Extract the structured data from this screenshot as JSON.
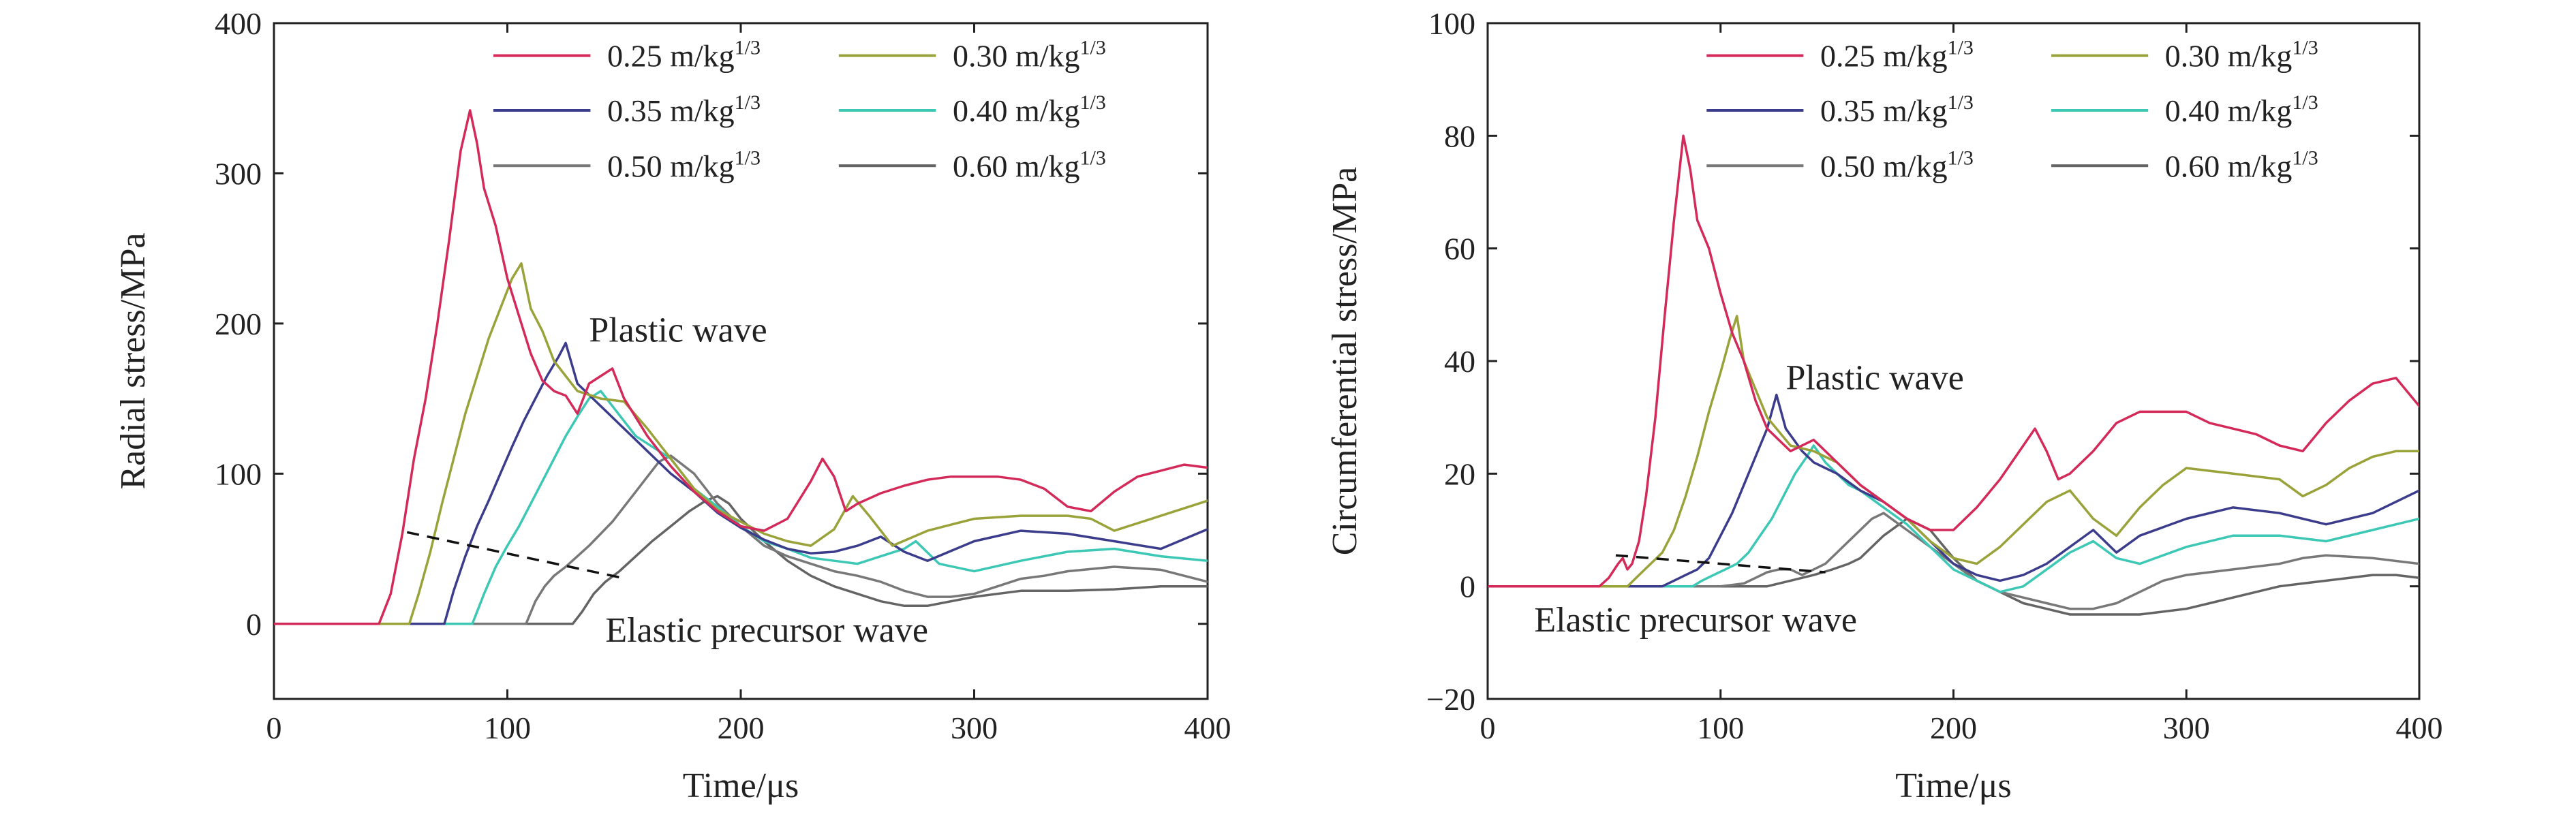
{
  "figure_colors": {
    "r025": "#d42a5a",
    "r030": "#9aa23a",
    "r035": "#3c3c8c",
    "r040": "#3cc8b4",
    "r050": "#787878",
    "r060": "#646464",
    "axis": "#222222",
    "dashed": "#111111"
  },
  "chart_data": [
    {
      "type": "line",
      "xlabel": "Time/μs",
      "ylabel": "Radial stress/MPa",
      "xlim": [
        0,
        400
      ],
      "ylim": [
        -50,
        400
      ],
      "xticks": [
        0,
        100,
        200,
        300,
        400
      ],
      "yticks": [
        0,
        100,
        200,
        300,
        400
      ],
      "xtick_labels": [
        "0",
        "100",
        "200",
        "300",
        "400"
      ],
      "ytick_labels": [
        "0",
        "100",
        "200",
        "300",
        "400"
      ],
      "grid": false,
      "legend_position": "top-right",
      "annotations": [
        {
          "text": "Plastic wave",
          "x": 135,
          "y": 188
        },
        {
          "text": "Elastic precursor wave",
          "x": 142,
          "y": -12
        }
      ],
      "dashed_line": {
        "x": [
          57,
          148
        ],
        "y": [
          61,
          31
        ]
      },
      "series": [
        {
          "name": "0.25 m/kg",
          "name_sup": "1/3",
          "color_key": "r025",
          "x": [
            0,
            45,
            50,
            55,
            60,
            65,
            70,
            75,
            80,
            84,
            87,
            90,
            95,
            100,
            105,
            110,
            115,
            120,
            125,
            130,
            135,
            140,
            145,
            150,
            160,
            170,
            180,
            190,
            200,
            210,
            220,
            230,
            235,
            240,
            245,
            250,
            260,
            270,
            280,
            290,
            300,
            310,
            320,
            330,
            340,
            350,
            360,
            370,
            380,
            390,
            400
          ],
          "y": [
            0,
            0,
            20,
            60,
            110,
            150,
            200,
            255,
            315,
            342,
            320,
            290,
            265,
            230,
            205,
            180,
            162,
            155,
            152,
            140,
            160,
            165,
            170,
            150,
            125,
            105,
            88,
            75,
            65,
            62,
            70,
            95,
            110,
            98,
            75,
            80,
            87,
            92,
            96,
            98,
            98,
            98,
            96,
            90,
            78,
            75,
            88,
            98,
            102,
            106,
            104
          ]
        },
        {
          "name": "0.30 m/kg",
          "name_sup": "1/3",
          "color_key": "r030",
          "x": [
            0,
            58,
            62,
            67,
            72,
            77,
            82,
            87,
            92,
            97,
            102,
            106,
            110,
            115,
            120,
            130,
            140,
            150,
            160,
            170,
            180,
            190,
            200,
            210,
            220,
            230,
            240,
            248,
            255,
            265,
            280,
            300,
            320,
            340,
            350,
            360,
            380,
            400
          ],
          "y": [
            0,
            0,
            20,
            48,
            80,
            110,
            140,
            165,
            190,
            210,
            230,
            240,
            210,
            195,
            175,
            155,
            150,
            148,
            130,
            110,
            90,
            76,
            68,
            60,
            55,
            52,
            63,
            85,
            72,
            52,
            62,
            70,
            72,
            72,
            70,
            62,
            72,
            82
          ]
        },
        {
          "name": "0.35 m/kg",
          "name_sup": "1/3",
          "color_key": "r035",
          "x": [
            0,
            73,
            77,
            82,
            87,
            92,
            97,
            102,
            107,
            112,
            117,
            122,
            125,
            130,
            140,
            150,
            160,
            170,
            180,
            190,
            200,
            210,
            220,
            230,
            240,
            250,
            260,
            270,
            280,
            300,
            320,
            340,
            360,
            380,
            400
          ],
          "y": [
            0,
            0,
            22,
            45,
            65,
            82,
            100,
            118,
            135,
            150,
            165,
            178,
            187,
            160,
            145,
            130,
            115,
            100,
            88,
            74,
            64,
            56,
            50,
            47,
            48,
            52,
            58,
            48,
            42,
            55,
            62,
            60,
            55,
            50,
            63
          ]
        },
        {
          "name": "0.40 m/kg",
          "name_sup": "1/3",
          "color_key": "r040",
          "x": [
            0,
            85,
            90,
            95,
            100,
            105,
            110,
            115,
            120,
            125,
            130,
            135,
            140,
            145,
            150,
            155,
            160,
            170,
            180,
            190,
            200,
            210,
            220,
            230,
            240,
            250,
            260,
            270,
            275,
            285,
            300,
            320,
            340,
            360,
            380,
            400
          ],
          "y": [
            0,
            0,
            20,
            38,
            52,
            65,
            80,
            95,
            110,
            125,
            138,
            150,
            155,
            145,
            135,
            125,
            120,
            110,
            90,
            78,
            65,
            55,
            50,
            44,
            42,
            40,
            45,
            50,
            55,
            40,
            35,
            42,
            48,
            50,
            45,
            42
          ]
        },
        {
          "name": "0.50 m/kg",
          "name_sup": "1/3",
          "color_key": "r050",
          "x": [
            0,
            108,
            112,
            116,
            120,
            125,
            130,
            135,
            140,
            145,
            150,
            155,
            160,
            165,
            170,
            180,
            190,
            200,
            210,
            220,
            230,
            240,
            250,
            260,
            270,
            280,
            290,
            300,
            310,
            320,
            330,
            340,
            360,
            380,
            400
          ],
          "y": [
            0,
            0,
            15,
            25,
            32,
            38,
            45,
            52,
            60,
            68,
            78,
            88,
            98,
            108,
            112,
            100,
            80,
            65,
            52,
            45,
            40,
            35,
            32,
            28,
            22,
            18,
            18,
            20,
            25,
            30,
            32,
            35,
            38,
            36,
            28
          ]
        },
        {
          "name": "0.60 m/kg",
          "name_sup": "1/3",
          "color_key": "r060",
          "x": [
            0,
            128,
            132,
            137,
            142,
            148,
            155,
            162,
            170,
            178,
            185,
            190,
            195,
            200,
            210,
            220,
            230,
            240,
            250,
            260,
            270,
            280,
            290,
            300,
            310,
            320,
            330,
            340,
            360,
            380,
            400
          ],
          "y": [
            0,
            0,
            8,
            20,
            28,
            35,
            45,
            55,
            65,
            75,
            82,
            85,
            80,
            70,
            55,
            42,
            32,
            25,
            20,
            15,
            12,
            12,
            15,
            18,
            20,
            22,
            22,
            22,
            23,
            25,
            25
          ]
        }
      ]
    },
    {
      "type": "line",
      "xlabel": "Time/μs",
      "ylabel": "Circumferential stress/MPa",
      "xlim": [
        0,
        400
      ],
      "ylim": [
        -20,
        100
      ],
      "xticks": [
        0,
        100,
        200,
        300,
        400
      ],
      "yticks": [
        -20,
        0,
        20,
        40,
        60,
        80,
        100
      ],
      "xtick_labels": [
        "0",
        "100",
        "200",
        "300",
        "400"
      ],
      "ytick_labels": [
        "−20",
        "0",
        "20",
        "40",
        "60",
        "80",
        "100"
      ],
      "grid": false,
      "legend_position": "top-right",
      "annotations": [
        {
          "text": "Plastic  wave",
          "x": 128,
          "y": 35
        },
        {
          "text": "Elastic precursor wave",
          "x": 20,
          "y": -8
        }
      ],
      "dashed_line": {
        "x": [
          55,
          145
        ],
        "y": [
          5.5,
          2.5
        ]
      },
      "series": [
        {
          "name": "0.25 m/kg",
          "name_sup": "1/3",
          "color_key": "r025",
          "x": [
            0,
            48,
            52,
            56,
            58,
            60,
            62,
            65,
            68,
            72,
            76,
            80,
            84,
            87,
            90,
            95,
            100,
            105,
            110,
            115,
            120,
            130,
            140,
            150,
            160,
            170,
            180,
            190,
            200,
            210,
            220,
            230,
            235,
            240,
            245,
            250,
            260,
            270,
            280,
            290,
            300,
            310,
            320,
            330,
            340,
            350,
            360,
            370,
            380,
            390,
            400
          ],
          "y": [
            0,
            0,
            1.5,
            4,
            5,
            3,
            4,
            8,
            16,
            30,
            48,
            65,
            80,
            74,
            65,
            60,
            52,
            45,
            40,
            33,
            28,
            24,
            26,
            22,
            18,
            15,
            12,
            10,
            10,
            14,
            19,
            25,
            28,
            24,
            19,
            20,
            24,
            29,
            31,
            31,
            31,
            29,
            28,
            27,
            25,
            24,
            29,
            33,
            36,
            37,
            32
          ]
        },
        {
          "name": "0.30 m/kg",
          "name_sup": "1/3",
          "color_key": "r030",
          "x": [
            0,
            60,
            65,
            70,
            75,
            80,
            85,
            90,
            95,
            100,
            104,
            107,
            110,
            115,
            120,
            130,
            140,
            150,
            160,
            170,
            180,
            190,
            200,
            210,
            220,
            230,
            240,
            250,
            260,
            270,
            280,
            290,
            300,
            320,
            340,
            350,
            360,
            370,
            380,
            390,
            400
          ],
          "y": [
            0,
            0,
            2,
            4,
            6,
            10,
            16,
            23,
            31,
            38,
            44,
            48,
            40,
            35,
            30,
            25,
            24,
            22,
            18,
            15,
            12,
            8,
            5,
            4,
            7,
            11,
            15,
            17,
            12,
            9,
            14,
            18,
            21,
            20,
            19,
            16,
            18,
            21,
            23,
            24,
            24
          ]
        },
        {
          "name": "0.35 m/kg",
          "name_sup": "1/3",
          "color_key": "r035",
          "x": [
            0,
            75,
            80,
            85,
            90,
            95,
            100,
            105,
            110,
            115,
            120,
            124,
            128,
            135,
            140,
            150,
            160,
            170,
            180,
            190,
            200,
            210,
            220,
            230,
            240,
            250,
            260,
            270,
            280,
            300,
            320,
            340,
            360,
            380,
            400
          ],
          "y": [
            0,
            0,
            1,
            2,
            3,
            5,
            9,
            13,
            18,
            23,
            28,
            34,
            28,
            24,
            22,
            20,
            17,
            15,
            12,
            8,
            4,
            2,
            1,
            2,
            4,
            7,
            10,
            6,
            9,
            12,
            14,
            13,
            11,
            13,
            17
          ]
        },
        {
          "name": "0.40 m/kg",
          "name_sup": "1/3",
          "color_key": "r040",
          "x": [
            0,
            88,
            92,
            97,
            102,
            107,
            112,
            117,
            122,
            127,
            132,
            137,
            140,
            145,
            150,
            155,
            160,
            170,
            180,
            190,
            200,
            210,
            220,
            230,
            240,
            250,
            260,
            270,
            280,
            300,
            320,
            340,
            360,
            380,
            400
          ],
          "y": [
            0,
            0,
            1,
            2,
            3,
            4,
            6,
            9,
            12,
            16,
            20,
            23,
            25,
            22,
            20,
            18,
            17,
            14,
            11,
            7,
            3,
            1,
            -1,
            0,
            3,
            6,
            8,
            5,
            4,
            7,
            9,
            9,
            8,
            10,
            12
          ]
        },
        {
          "name": "0.50 m/kg",
          "name_sup": "1/3",
          "color_key": "r050",
          "x": [
            0,
            100,
            110,
            115,
            120,
            125,
            130,
            135,
            140,
            145,
            150,
            155,
            160,
            165,
            170,
            180,
            190,
            200,
            210,
            220,
            230,
            240,
            250,
            260,
            270,
            280,
            290,
            300,
            310,
            320,
            330,
            340,
            350,
            360,
            380,
            400
          ],
          "y": [
            0,
            0,
            0.5,
            1.5,
            2.5,
            3,
            3,
            2,
            3,
            4,
            6,
            8,
            10,
            12,
            13,
            10,
            7,
            4,
            1,
            -1,
            -2,
            -3,
            -4,
            -4,
            -3,
            -1,
            1,
            2,
            2.5,
            3,
            3.5,
            4,
            5,
            5.5,
            5,
            4
          ]
        },
        {
          "name": "0.60 m/kg",
          "name_sup": "1/3",
          "color_key": "r060",
          "x": [
            0,
            120,
            130,
            140,
            148,
            155,
            160,
            165,
            170,
            180,
            190,
            200,
            210,
            220,
            230,
            240,
            250,
            260,
            270,
            280,
            290,
            300,
            310,
            320,
            330,
            340,
            350,
            360,
            370,
            380,
            390,
            400
          ],
          "y": [
            0,
            0,
            1,
            2,
            3,
            4,
            5,
            7,
            9,
            12,
            10,
            5,
            1,
            -1,
            -3,
            -4,
            -5,
            -5,
            -5,
            -5,
            -4.5,
            -4,
            -3,
            -2,
            -1,
            0,
            0.5,
            1,
            1.5,
            2,
            2,
            1.5
          ]
        }
      ]
    }
  ]
}
